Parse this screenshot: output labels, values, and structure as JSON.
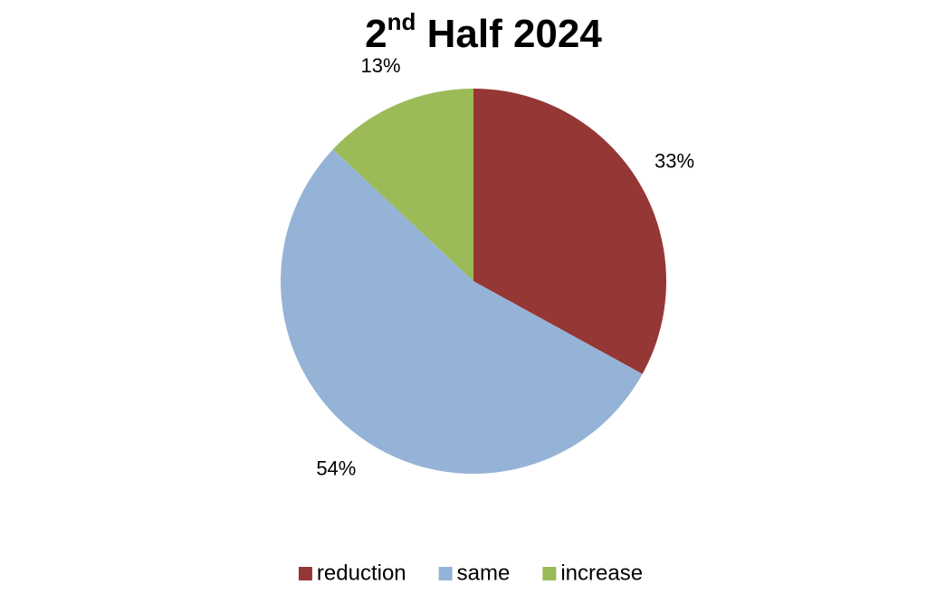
{
  "chart_data": {
    "type": "pie",
    "title": "2nd Half 2024",
    "categories": [
      "reduction",
      "same",
      "increase"
    ],
    "values": [
      33,
      54,
      13
    ],
    "value_labels": [
      "33%",
      "54%",
      "13%"
    ],
    "colors": [
      "#953735",
      "#95b3d7",
      "#9bbb59"
    ],
    "legend": "bottom"
  }
}
